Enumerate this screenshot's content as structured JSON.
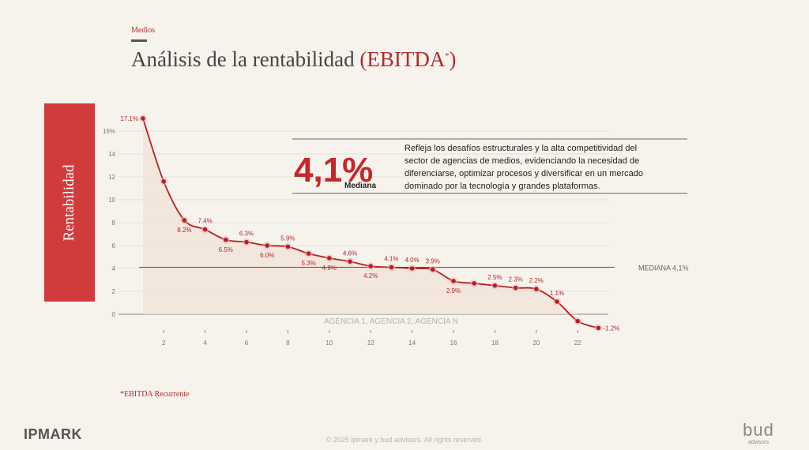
{
  "header": {
    "section": "Medios",
    "title_main": "Análisis de la rentabilidad ",
    "title_accent": "(EBITDA",
    "title_sup": "*",
    "title_close": ")"
  },
  "side_label": "Rentabilidad",
  "callout": {
    "value": "4,1%",
    "value_label": "Mediana",
    "text_lines": [
      "Refleja los desafíos estructurales y la alta competitividad del",
      "sector de agencias de medios, evidenciando la necesidad de",
      "diferenciarse, optimizar procesos y diversificar en un mercado",
      "dominado por la tecnología y grandes plataformas."
    ]
  },
  "footnote": "*EBITDA Recurrente",
  "footer": {
    "brand_left": "IPMARK",
    "copyright": "© 2025 Ipmark y bud advisors. All rights reserved.",
    "brand_right": "bud",
    "brand_right_sub": "advisors"
  },
  "colors": {
    "accent": "#b22a2a",
    "line": "#b61f24",
    "side_box": "#d13b3b",
    "background": "#f6f3ec"
  },
  "chart_data": {
    "type": "line",
    "x": [
      1,
      2,
      3,
      4,
      5,
      6,
      7,
      8,
      9,
      10,
      11,
      12,
      13,
      14,
      15,
      16,
      17,
      18,
      19,
      20,
      21,
      22,
      23
    ],
    "values": [
      17.1,
      11.6,
      8.2,
      7.4,
      6.5,
      6.3,
      6.0,
      5.9,
      5.3,
      4.9,
      4.6,
      4.2,
      4.1,
      4.0,
      3.9,
      2.9,
      2.7,
      2.5,
      2.3,
      2.2,
      1.1,
      -0.6,
      -1.2
    ],
    "labels": [
      {
        "x": 1,
        "text": "17.1%"
      },
      {
        "x": 3,
        "text": "8.2%"
      },
      {
        "x": 4,
        "text": "7.4%"
      },
      {
        "x": 5,
        "text": "6.5%"
      },
      {
        "x": 6,
        "text": "6.3%"
      },
      {
        "x": 7,
        "text": "6.0%"
      },
      {
        "x": 8,
        "text": "5.9%"
      },
      {
        "x": 9,
        "text": "5.3%"
      },
      {
        "x": 10,
        "text": "4.9%"
      },
      {
        "x": 11,
        "text": "4.6%"
      },
      {
        "x": 12,
        "text": "4.2%"
      },
      {
        "x": 13,
        "text": "4.1%"
      },
      {
        "x": 14,
        "text": "4.0%"
      },
      {
        "x": 15,
        "text": "3.9%"
      },
      {
        "x": 16,
        "text": "2.9%"
      },
      {
        "x": 18,
        "text": "2.5%"
      },
      {
        "x": 19,
        "text": "2.3%"
      },
      {
        "x": 20,
        "text": "2.2%"
      },
      {
        "x": 21,
        "text": "1.1%"
      },
      {
        "x": 23,
        "text": "-1.2%"
      }
    ],
    "yticks": [
      "0",
      "2",
      "4",
      "6",
      "8",
      "10",
      "12",
      "14",
      "16%"
    ],
    "ytick_values": [
      0,
      2,
      4,
      6,
      8,
      10,
      12,
      14,
      16
    ],
    "xticks": [
      2,
      4,
      6,
      8,
      10,
      12,
      14,
      16,
      18,
      20,
      22
    ],
    "ylim": [
      -1.5,
      17.5
    ],
    "xlim": [
      1,
      23
    ],
    "median": {
      "value": 4.1,
      "label": "MEDIANA 4,1%"
    },
    "baseline_label": "AGENCIA 1, AGENCIA 2, AGENCIA N",
    "grid": true
  }
}
